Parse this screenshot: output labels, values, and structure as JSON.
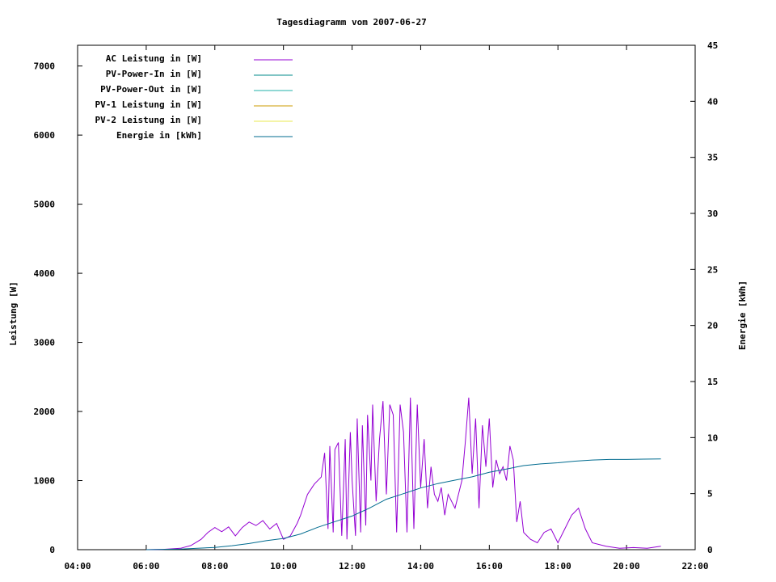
{
  "chart_data": {
    "type": "line",
    "title": "Tagesdiagramm vom 2007-06-27",
    "xlabel": "",
    "ylabel": "Leistung [W]",
    "y2label": "Energie [kWh]",
    "xlim": [
      "04:00",
      "22:00"
    ],
    "xlim_hours": [
      4,
      22
    ],
    "ylim": [
      0,
      7300
    ],
    "y2lim": [
      0,
      45
    ],
    "xticks": [
      "04:00",
      "06:00",
      "08:00",
      "10:00",
      "12:00",
      "14:00",
      "16:00",
      "18:00",
      "20:00",
      "22:00"
    ],
    "yticks": [
      "0",
      "1000",
      "2000",
      "3000",
      "4000",
      "5000",
      "6000",
      "7000"
    ],
    "y2ticks": [
      "0",
      "5",
      "10",
      "15",
      "20",
      "25",
      "30",
      "35",
      "40",
      "45"
    ],
    "grid": false,
    "legend_position": "top-left",
    "legend": [
      {
        "label": "AC Leistung in [W]",
        "color": "#9400d3"
      },
      {
        "label": "PV-Power-In in [W]",
        "color": "#008b8b"
      },
      {
        "label": "PV-Power-Out in [W]",
        "color": "#20b2aa"
      },
      {
        "label": "PV-1 Leistung in [W]",
        "color": "#cd9b00"
      },
      {
        "label": "PV-2 Leistung in [W]",
        "color": "#e8e850"
      },
      {
        "label": "Energie in [kWh]",
        "color": "#006b8f"
      }
    ],
    "series": [
      {
        "name": "AC Leistung in [W]",
        "axis": "y",
        "color": "#9400d3",
        "x": [
          6.0,
          6.5,
          7.0,
          7.3,
          7.6,
          7.8,
          8.0,
          8.2,
          8.4,
          8.6,
          8.8,
          9.0,
          9.2,
          9.4,
          9.6,
          9.8,
          10.0,
          10.2,
          10.4,
          10.5,
          10.7,
          10.9,
          11.1,
          11.2,
          11.3,
          11.35,
          11.45,
          11.5,
          11.6,
          11.7,
          11.8,
          11.85,
          11.95,
          12.0,
          12.1,
          12.15,
          12.25,
          12.3,
          12.4,
          12.45,
          12.55,
          12.6,
          12.7,
          12.8,
          12.9,
          13.0,
          13.1,
          13.2,
          13.3,
          13.4,
          13.5,
          13.6,
          13.7,
          13.8,
          13.9,
          14.0,
          14.1,
          14.2,
          14.3,
          14.4,
          14.5,
          14.6,
          14.7,
          14.8,
          15.0,
          15.2,
          15.3,
          15.4,
          15.5,
          15.6,
          15.7,
          15.8,
          15.9,
          16.0,
          16.1,
          16.2,
          16.3,
          16.4,
          16.5,
          16.6,
          16.7,
          16.8,
          16.9,
          17.0,
          17.2,
          17.4,
          17.6,
          17.8,
          18.0,
          18.2,
          18.4,
          18.6,
          18.8,
          19.0,
          19.4,
          19.8,
          20.2,
          20.6,
          21.0
        ],
        "values": [
          0,
          5,
          20,
          60,
          150,
          250,
          320,
          260,
          330,
          200,
          320,
          400,
          350,
          420,
          300,
          380,
          150,
          200,
          380,
          500,
          800,
          950,
          1050,
          1400,
          300,
          1500,
          250,
          1450,
          1550,
          200,
          1600,
          150,
          1700,
          1000,
          200,
          1900,
          250,
          1800,
          350,
          1950,
          1000,
          2100,
          700,
          1600,
          2150,
          800,
          2100,
          1950,
          250,
          2100,
          1700,
          250,
          2200,
          300,
          2100,
          900,
          1600,
          600,
          1200,
          800,
          700,
          900,
          500,
          800,
          600,
          1000,
          1550,
          2200,
          1100,
          1900,
          600,
          1800,
          1200,
          1900,
          900,
          1300,
          1100,
          1200,
          1000,
          1500,
          1300,
          400,
          700,
          250,
          150,
          100,
          250,
          300,
          100,
          300,
          500,
          600,
          300,
          100,
          50,
          20,
          30,
          20,
          50
        ]
      },
      {
        "name": "Energie in [kWh]",
        "axis": "y2",
        "color": "#006b8f",
        "x": [
          6.0,
          7.0,
          8.0,
          8.5,
          9.0,
          9.5,
          10.0,
          10.5,
          11.0,
          11.5,
          12.0,
          12.5,
          13.0,
          13.5,
          14.0,
          14.5,
          15.0,
          15.5,
          16.0,
          16.5,
          17.0,
          17.5,
          18.0,
          18.5,
          19.0,
          19.5,
          20.0,
          20.5,
          21.0
        ],
        "values": [
          0,
          0.05,
          0.2,
          0.35,
          0.55,
          0.8,
          1.0,
          1.4,
          2.0,
          2.5,
          3.0,
          3.7,
          4.5,
          5.0,
          5.5,
          5.9,
          6.2,
          6.5,
          6.9,
          7.2,
          7.5,
          7.65,
          7.75,
          7.9,
          8.0,
          8.05,
          8.05,
          8.08,
          8.1
        ]
      }
    ]
  }
}
